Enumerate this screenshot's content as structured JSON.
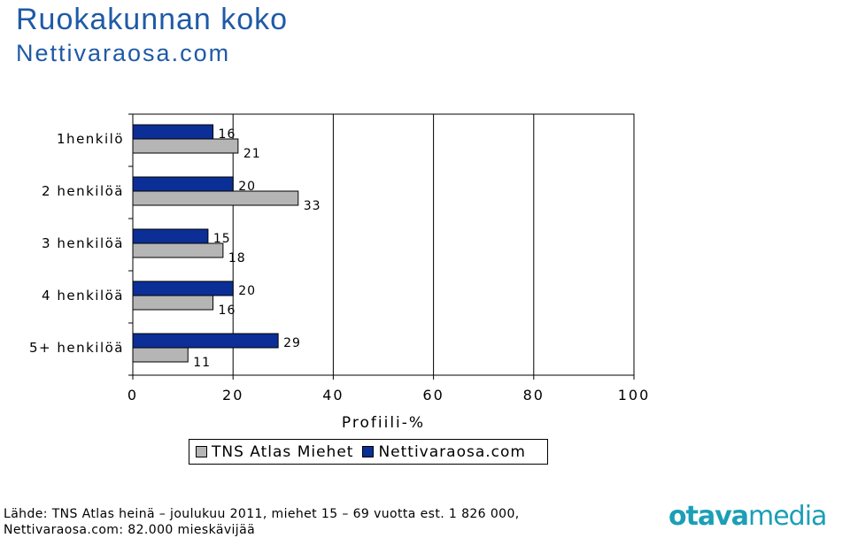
{
  "header": {
    "title": "Ruokakunnan koko",
    "subtitle": "Nettivaraosa.com"
  },
  "chart_data": {
    "type": "bar",
    "orientation": "horizontal",
    "categories": [
      "1henkilö",
      "2 henkilöä",
      "3 henkilöä",
      "4 henkilöä",
      "5+ henkilöä"
    ],
    "series": [
      {
        "name": "Nettivaraosa.com",
        "values": [
          16,
          20,
          15,
          20,
          29
        ],
        "color": "#0b2f96"
      },
      {
        "name": "TNS Atlas Miehet",
        "values": [
          21,
          33,
          18,
          16,
          11
        ],
        "color": "#b5b5b5"
      }
    ],
    "xlabel": "Profiili-%",
    "xlim": [
      0,
      100
    ],
    "xticks": [
      "0",
      "20",
      "40",
      "60",
      "80",
      "100"
    ],
    "grid": true,
    "legend_position": "bottom"
  },
  "legend": {
    "items": [
      {
        "label": "TNS Atlas Miehet",
        "color": "#b5b5b5"
      },
      {
        "label": "Nettivaraosa.com",
        "color": "#0b2f96"
      }
    ]
  },
  "footer": {
    "source_line1": "Lähde: TNS Atlas heinä – joulukuu 2011, miehet 15 – 69 vuotta est. 1 826 000,",
    "source_line2": "Nettivaraosa.com: 82.000 mieskävijää"
  },
  "logo": {
    "part1": "otava",
    "part2": "media"
  }
}
